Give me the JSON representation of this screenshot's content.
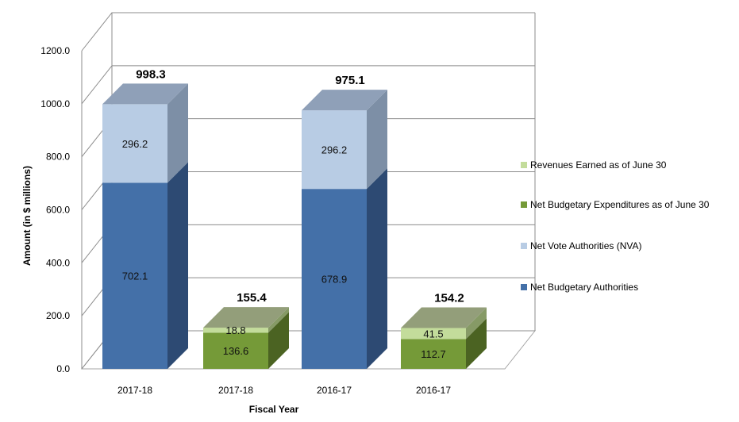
{
  "chart_data": {
    "type": "bar",
    "stacked": true,
    "three_d": true,
    "title": "",
    "xlabel": "Fiscal Year",
    "ylabel": "Amount (in $ millions)",
    "ylim": [
      0,
      1200
    ],
    "y_ticks": [
      "0.0",
      "200.0",
      "400.0",
      "600.0",
      "800.0",
      "1000.0",
      "1200.0"
    ],
    "grid": true,
    "legend_position": "right",
    "categories": [
      "2017-18",
      "2017-18",
      "2016-17",
      "2016-17"
    ],
    "totals": [
      "998.3",
      "155.4",
      "975.1",
      "154.2"
    ],
    "bars": [
      {
        "category": "2017-18",
        "segments": [
          {
            "series": "Net Budgetary Authorities",
            "value": 702.1,
            "label": "702.1"
          },
          {
            "series": "Net Vote Authorities (NVA)",
            "value": 296.2,
            "label": "296.2"
          }
        ]
      },
      {
        "category": "2017-18",
        "segments": [
          {
            "series": "Net Budgetary Expenditures as of June 30",
            "value": 136.6,
            "label": "136.6"
          },
          {
            "series": "Revenues Earned as of June 30",
            "value": 18.8,
            "label": "18.8"
          }
        ]
      },
      {
        "category": "2016-17",
        "segments": [
          {
            "series": "Net Budgetary Authorities",
            "value": 678.9,
            "label": "678.9"
          },
          {
            "series": "Net Vote Authorities (NVA)",
            "value": 296.2,
            "label": "296.2"
          }
        ]
      },
      {
        "category": "2016-17",
        "segments": [
          {
            "series": "Net Budgetary Expenditures as of June 30",
            "value": 112.7,
            "label": "112.7"
          },
          {
            "series": "Revenues Earned as of June 30",
            "value": 41.5,
            "label": "41.5"
          }
        ]
      }
    ],
    "legend": [
      {
        "name": "Revenues Earned as of June 30",
        "color": "#c3dc9b"
      },
      {
        "name": "Net Budgetary Expenditures as of June 30",
        "color": "#759a38"
      },
      {
        "name": "Net Vote Authorities (NVA)",
        "color": "#b8cce4"
      },
      {
        "name": "Net Budgetary Authorities",
        "color": "#4470a8"
      }
    ],
    "colors": {
      "Net Budgetary Authorities": {
        "front": "#4470a8",
        "side": "#2d4a73"
      },
      "Net Vote Authorities (NVA)": {
        "front": "#b8cce4",
        "side": "#7d8fa6"
      },
      "Net Budgetary Expenditures as of June 30": {
        "front": "#759a38",
        "side": "#4b6322"
      },
      "Revenues Earned as of June 30": {
        "front": "#c3dc9b",
        "side": "#869a66"
      },
      "top_blue": "#8fa0b8",
      "top_green": "#939e7a"
    }
  }
}
